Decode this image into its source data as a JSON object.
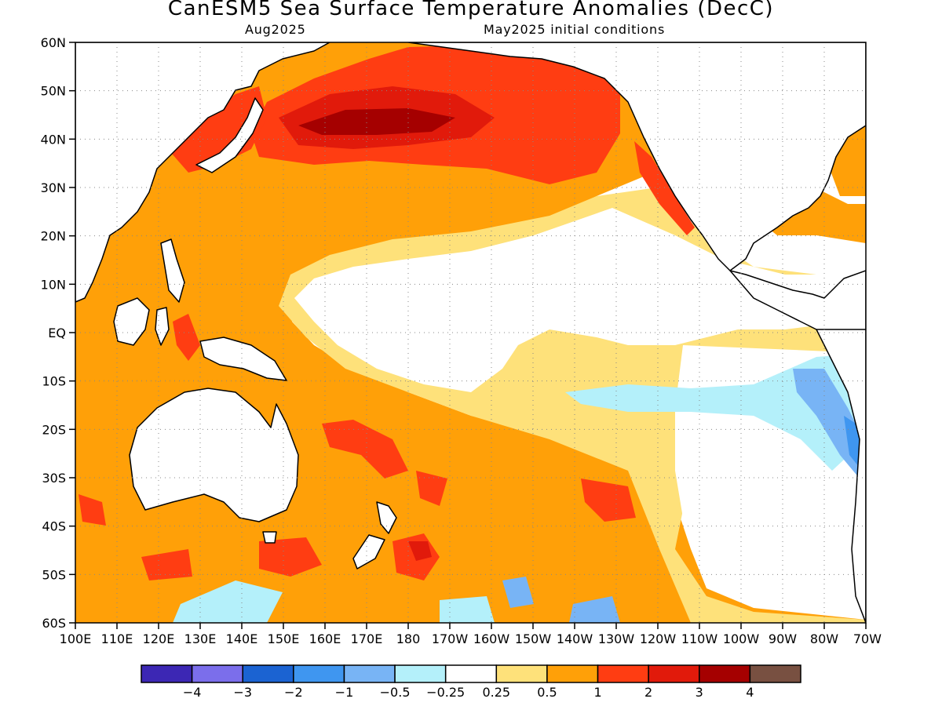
{
  "title": "CanESM5 Sea Surface Temperature Anomalies (DecC)",
  "lead_label": "Aug2025",
  "init_label": "May2025 initial conditions",
  "map": {
    "lat_range": [
      -60,
      60
    ],
    "lon_range": [
      100,
      290
    ],
    "lat_labels": [
      {
        "lat": 60,
        "text": "60N"
      },
      {
        "lat": 50,
        "text": "50N"
      },
      {
        "lat": 40,
        "text": "40N"
      },
      {
        "lat": 30,
        "text": "30N"
      },
      {
        "lat": 20,
        "text": "20N"
      },
      {
        "lat": 10,
        "text": "10N"
      },
      {
        "lat": 0,
        "text": "EQ"
      },
      {
        "lat": -10,
        "text": "10S"
      },
      {
        "lat": -20,
        "text": "20S"
      },
      {
        "lat": -30,
        "text": "30S"
      },
      {
        "lat": -40,
        "text": "40S"
      },
      {
        "lat": -50,
        "text": "50S"
      },
      {
        "lat": -60,
        "text": "60S"
      }
    ],
    "lon_labels": [
      {
        "lon": 100,
        "text": "100E"
      },
      {
        "lon": 110,
        "text": "110E"
      },
      {
        "lon": 120,
        "text": "120E"
      },
      {
        "lon": 130,
        "text": "130E"
      },
      {
        "lon": 140,
        "text": "140E"
      },
      {
        "lon": 150,
        "text": "150E"
      },
      {
        "lon": 160,
        "text": "160E"
      },
      {
        "lon": 170,
        "text": "170E"
      },
      {
        "lon": 180,
        "text": "180"
      },
      {
        "lon": 190,
        "text": "170W"
      },
      {
        "lon": 200,
        "text": "160W"
      },
      {
        "lon": 210,
        "text": "150W"
      },
      {
        "lon": 220,
        "text": "140W"
      },
      {
        "lon": 230,
        "text": "130W"
      },
      {
        "lon": 240,
        "text": "120W"
      },
      {
        "lon": 250,
        "text": "110W"
      },
      {
        "lon": 260,
        "text": "100W"
      },
      {
        "lon": 270,
        "text": "90W"
      },
      {
        "lon": 280,
        "text": "80W"
      },
      {
        "lon": 290,
        "text": "70W"
      }
    ]
  },
  "colorbar": {
    "colors": [
      "#3c27b4",
      "#7b6eeb",
      "#1b63d2",
      "#3f96f0",
      "#78b4f5",
      "#b4f0fa",
      "#ffffff",
      "#fee17a",
      "#ffa008",
      "#ff3d12",
      "#e11a0b",
      "#a50000",
      "#785041"
    ],
    "labels": [
      "−4",
      "−3",
      "−2",
      "−1",
      "−0.5",
      "−0.25",
      "0.25",
      "0.5",
      "1",
      "2",
      "3",
      "4"
    ]
  },
  "anomaly_colors": {
    "neutral": "#ffffff",
    "weak_warm": "#fee17a",
    "warm": "#ffa008",
    "strong_warm": "#ff3d12",
    "very_strong_warm": "#e11a0b",
    "extreme_warm": "#a50000",
    "weak_cool": "#b4f0fa",
    "cool": "#78b4f5",
    "strong_cool": "#3f96f0"
  }
}
